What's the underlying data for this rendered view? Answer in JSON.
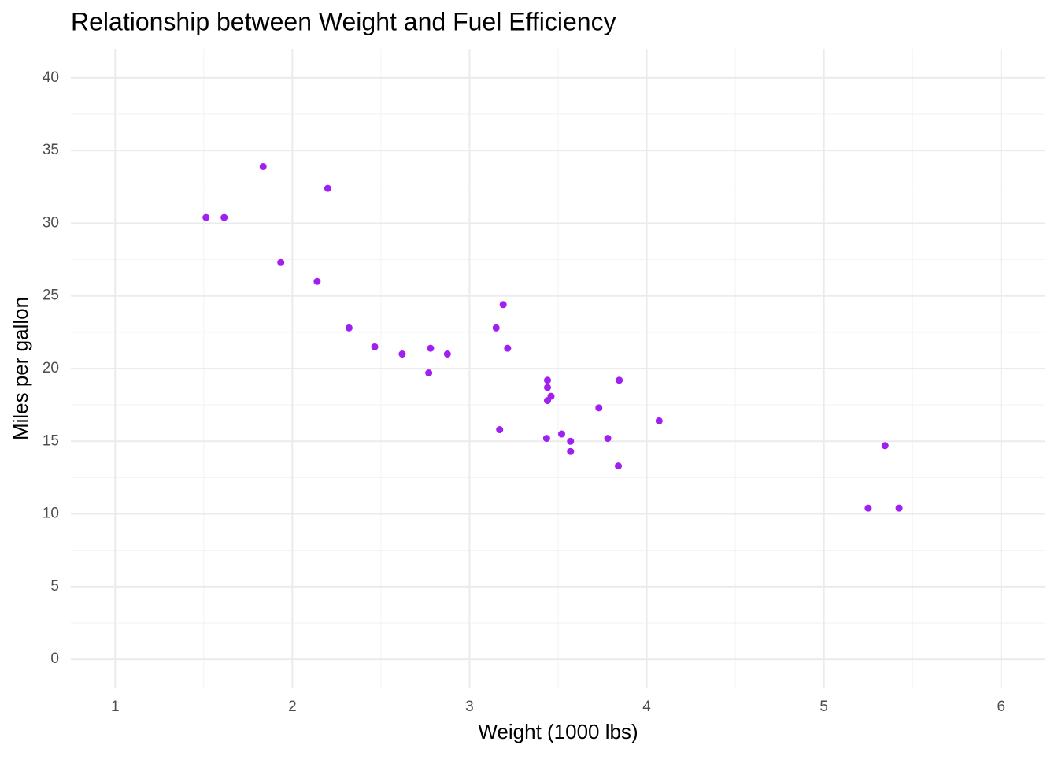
{
  "chart_data": {
    "type": "scatter",
    "title": "Relationship between Weight and Fuel Efficiency",
    "x_label": "Weight (1000 lbs)",
    "y_label": "Miles per gallon",
    "color": "#a020f0",
    "x": [
      2.62,
      2.875,
      2.32,
      3.215,
      3.44,
      3.46,
      3.57,
      3.19,
      3.15,
      3.44,
      3.44,
      4.07,
      3.73,
      3.78,
      5.25,
      5.424,
      5.345,
      2.2,
      1.615,
      1.835,
      2.465,
      3.52,
      3.435,
      3.84,
      3.845,
      1.935,
      2.14,
      1.513,
      3.17,
      2.77,
      3.57,
      2.78
    ],
    "values": [
      21.0,
      21.0,
      22.8,
      21.4,
      18.7,
      18.1,
      14.3,
      24.4,
      22.8,
      19.2,
      17.8,
      16.4,
      17.3,
      15.2,
      10.4,
      10.4,
      14.7,
      32.4,
      30.4,
      33.9,
      21.5,
      15.5,
      15.2,
      13.3,
      19.2,
      27.3,
      26.0,
      30.4,
      15.8,
      19.7,
      15.0,
      21.4
    ],
    "xlim": [
      0.75,
      6.25
    ],
    "xticks": [
      1,
      2,
      3,
      4,
      5,
      6
    ],
    "ylim": [
      -2,
      42
    ],
    "yticks": [
      0,
      5,
      10,
      15,
      20,
      25,
      30,
      35,
      40
    ],
    "grid": true
  }
}
